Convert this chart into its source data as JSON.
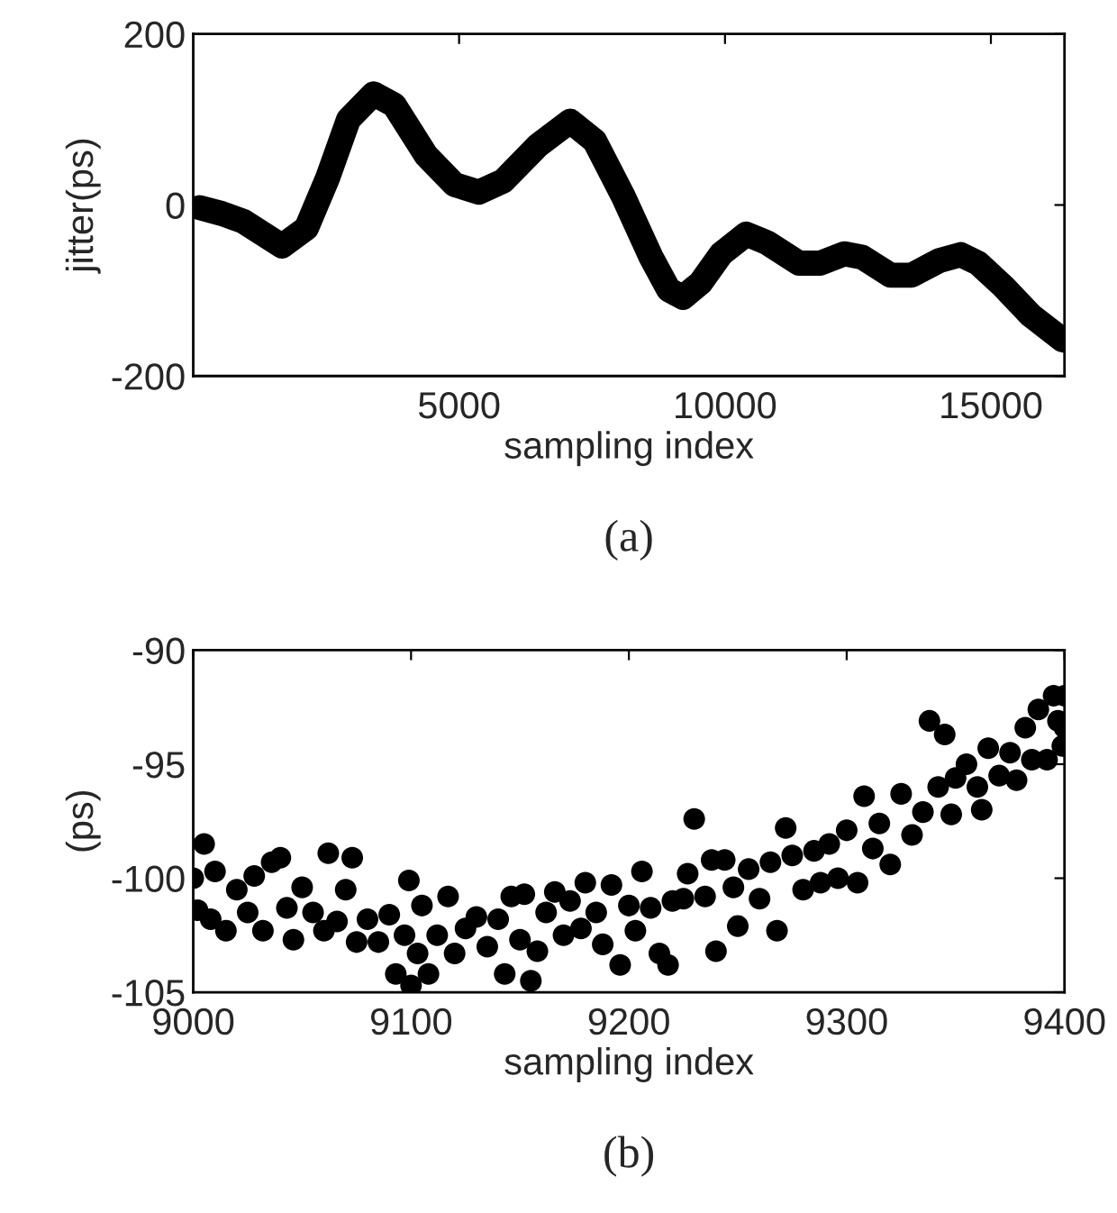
{
  "chart_data": [
    {
      "type": "line",
      "xlabel": "sampling index",
      "ylabel": "jitter(ps)",
      "annotations": [
        "(a)"
      ],
      "grid": false,
      "xlim": [
        1,
        16384
      ],
      "xticks": [
        5000,
        10000,
        15000
      ],
      "ylim": [
        -200,
        200
      ],
      "yticks": [
        -200,
        0,
        200
      ],
      "series": [
        {
          "color": "#000000",
          "x": [
            120,
            540,
            940,
            1670,
            2130,
            2530,
            2920,
            3390,
            3780,
            4380,
            4910,
            5370,
            5830,
            6490,
            7090,
            7550,
            8080,
            8610,
            8940,
            9210,
            9540,
            9930,
            10400,
            10790,
            11390,
            11790,
            12250,
            12580,
            13110,
            13510,
            14030,
            14430,
            14760,
            15230,
            15750,
            16350
          ],
          "values": [
            -3,
            -10,
            -19,
            -48,
            -27,
            32,
            100,
            130,
            117,
            58,
            24,
            15,
            28,
            70,
            98,
            75,
            11,
            -61,
            -99,
            -108,
            -91,
            -57,
            -34,
            -44,
            -68,
            -68,
            -57,
            -61,
            -82,
            -82,
            -65,
            -58,
            -68,
            -95,
            -129,
            -158
          ]
        }
      ]
    },
    {
      "type": "scatter",
      "xlabel": "sampling index",
      "ylabel": "(ps)",
      "annotations": [
        "(b)"
      ],
      "marker": "circle",
      "grid": false,
      "xlim": [
        9000,
        9400
      ],
      "xticks": [
        9000,
        9100,
        9200,
        9300,
        9400
      ],
      "ylim": [
        -105,
        -90
      ],
      "yticks": [
        -105,
        -100,
        -95,
        -90
      ],
      "series": [
        {
          "color": "#000000",
          "x": [
            9000,
            9002,
            9005,
            9008,
            9010,
            9015,
            9020,
            9025,
            9028,
            9032,
            9036,
            9040,
            9043,
            9046,
            9050,
            9055,
            9060,
            9062,
            9066,
            9070,
            9073,
            9075,
            9080,
            9085,
            9090,
            9093,
            9097,
            9099,
            9100,
            9103,
            9105,
            9108,
            9112,
            9117,
            9120,
            9125,
            9130,
            9135,
            9140,
            9143,
            9146,
            9150,
            9152,
            9155,
            9158,
            9162,
            9166,
            9170,
            9173,
            9178,
            9180,
            9185,
            9188,
            9192,
            9196,
            9200,
            9203,
            9206,
            9210,
            9214,
            9218,
            9220,
            9225,
            9227,
            9230,
            9235,
            9238,
            9240,
            9244,
            9248,
            9250,
            9255,
            9260,
            9265,
            9268,
            9272,
            9275,
            9280,
            9285,
            9288,
            9292,
            9296,
            9300,
            9305,
            9308,
            9312,
            9315,
            9320,
            9325,
            9330,
            9335,
            9338,
            9342,
            9345,
            9348,
            9350,
            9355,
            9360,
            9362,
            9365,
            9370,
            9375,
            9378,
            9382,
            9385,
            9388,
            9392,
            9395,
            9397,
            9400,
            9399,
            9400
          ],
          "values": [
            -100,
            -101.4,
            -98.5,
            -101.8,
            -99.7,
            -102.3,
            -100.5,
            -101.5,
            -99.9,
            -102.3,
            -99.3,
            -99.1,
            -101.3,
            -102.7,
            -100.4,
            -101.5,
            -102.3,
            -98.9,
            -101.9,
            -100.5,
            -99.1,
            -102.8,
            -101.8,
            -102.8,
            -101.6,
            -104.2,
            -102.5,
            -100.1,
            -104.7,
            -103.3,
            -101.2,
            -104.2,
            -102.5,
            -100.8,
            -103.3,
            -102.2,
            -101.7,
            -103.0,
            -101.8,
            -104.2,
            -100.8,
            -102.7,
            -100.7,
            -104.5,
            -103.2,
            -101.5,
            -100.6,
            -102.5,
            -101.0,
            -102.2,
            -100.2,
            -101.5,
            -102.9,
            -100.3,
            -103.8,
            -101.2,
            -102.3,
            -99.7,
            -101.3,
            -103.3,
            -103.8,
            -101.0,
            -100.9,
            -99.8,
            -97.4,
            -100.8,
            -99.2,
            -103.2,
            -99.2,
            -100.4,
            -102.1,
            -99.6,
            -100.9,
            -99.3,
            -102.3,
            -97.8,
            -99.0,
            -100.5,
            -98.8,
            -100.2,
            -98.5,
            -100.0,
            -97.9,
            -100.2,
            -96.4,
            -98.7,
            -97.6,
            -99.4,
            -96.3,
            -98.1,
            -97.1,
            -93.1,
            -96.0,
            -93.7,
            -97.2,
            -95.6,
            -95.0,
            -96.0,
            -97.0,
            -94.3,
            -95.5,
            -94.5,
            -95.7,
            -93.4,
            -94.8,
            -92.6,
            -94.8,
            -92.0,
            -93.1,
            -92.0,
            -94.2,
            -93.4
          ]
        }
      ]
    }
  ]
}
